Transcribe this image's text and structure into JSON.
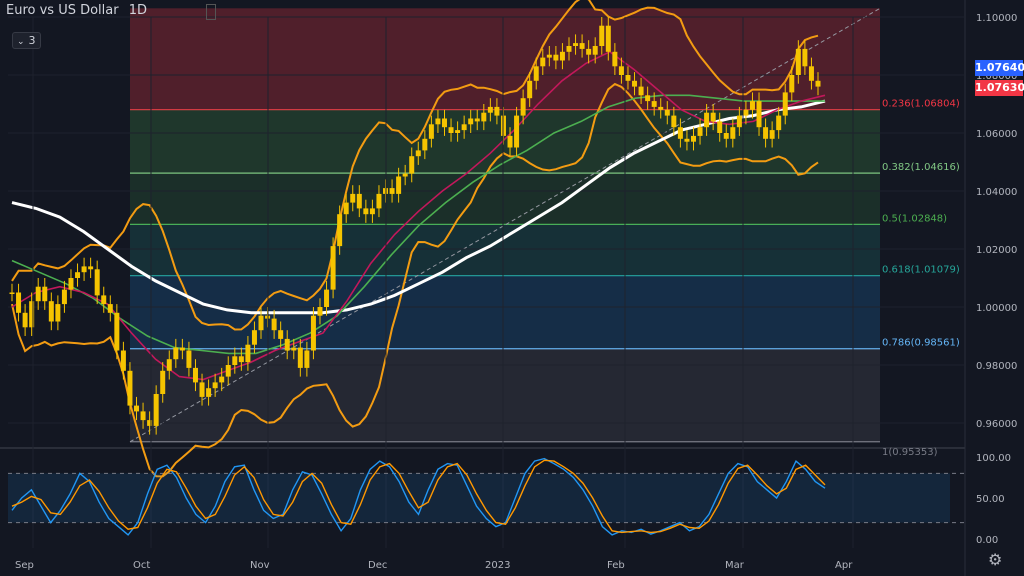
{
  "header": {
    "symbol": "Euro vs US Dollar",
    "interval": "1D",
    "indicator_count": "3"
  },
  "price_tags": {
    "blue": "1.07640",
    "red": "1.07630"
  },
  "colors": {
    "candle": "#f5c400",
    "bb": "#f39c12",
    "ma_white": "#ffffff",
    "ma_green": "#4caf50",
    "ma_pink": "#c2185b",
    "stoch_k": "#2196f3",
    "stoch_d": "#ff9800",
    "tag_blue": "#2962ff",
    "tag_red": "#f23645"
  },
  "chart_data": [
    {
      "type": "candlestick",
      "title": "Euro vs US Dollar",
      "interval": "1D",
      "x_ticks": [
        "Sep",
        "Oct",
        "Nov",
        "Dec",
        "2023",
        "Feb",
        "Mar",
        "Apr"
      ],
      "y_ticks": [
        "1.10000",
        "1.08000",
        "1.06000",
        "1.04000",
        "1.02000",
        "1.00000",
        "0.98000",
        "0.96000"
      ],
      "ylim": [
        0.951,
        1.105
      ],
      "fib_levels": [
        {
          "label": "0.236(1.06804)",
          "value": 1.06804,
          "color": "#f23645"
        },
        {
          "label": "0.382(1.04616)",
          "value": 1.04616,
          "color": "#81c784"
        },
        {
          "label": "0.5(1.02848)",
          "value": 1.02848,
          "color": "#4caf50"
        },
        {
          "label": "0.618(1.01079)",
          "value": 1.01079,
          "color": "#26a69a"
        },
        {
          "label": "0.786(0.98561)",
          "value": 0.98561,
          "color": "#64b5f6"
        },
        {
          "label": "1(0.95353)",
          "value": 0.95353,
          "color": "#787b86"
        }
      ],
      "close": [
        1.005,
        0.998,
        0.993,
        1.002,
        1.007,
        1.002,
        0.995,
        1.001,
        1.006,
        1.01,
        1.012,
        1.014,
        1.013,
        1.004,
        1.001,
        0.998,
        0.985,
        0.978,
        0.966,
        0.964,
        0.961,
        0.959,
        0.97,
        0.978,
        0.982,
        0.986,
        0.985,
        0.979,
        0.974,
        0.969,
        0.972,
        0.974,
        0.976,
        0.98,
        0.983,
        0.981,
        0.987,
        0.992,
        0.997,
        0.996,
        0.992,
        0.989,
        0.985,
        0.986,
        0.979,
        0.985,
        0.997,
        1.0,
        1.006,
        1.021,
        1.032,
        1.036,
        1.039,
        1.034,
        1.032,
        1.034,
        1.039,
        1.041,
        1.039,
        1.045,
        1.046,
        1.052,
        1.054,
        1.058,
        1.063,
        1.065,
        1.062,
        1.06,
        1.061,
        1.063,
        1.065,
        1.064,
        1.067,
        1.069,
        1.066,
        1.059,
        1.055,
        1.066,
        1.072,
        1.078,
        1.083,
        1.086,
        1.087,
        1.085,
        1.088,
        1.09,
        1.091,
        1.089,
        1.087,
        1.09,
        1.097,
        1.088,
        1.083,
        1.08,
        1.078,
        1.076,
        1.073,
        1.071,
        1.069,
        1.068,
        1.066,
        1.062,
        1.058,
        1.057,
        1.059,
        1.062,
        1.067,
        1.064,
        1.06,
        1.058,
        1.062,
        1.066,
        1.068,
        1.071,
        1.062,
        1.058,
        1.061,
        1.066,
        1.074,
        1.08,
        1.089,
        1.083,
        1.078,
        1.076
      ],
      "series": [
        {
          "name": "",
          "color": "#ffffff",
          "values": [
            1.036,
            1.034,
            1.031,
            1.026,
            1.02,
            1.014,
            1.009,
            1.005,
            1.001,
            0.999,
            0.998,
            0.998,
            0.998,
            0.998,
            0.999,
            1.001,
            1.004,
            1.008,
            1.012,
            1.017,
            1.021,
            1.026,
            1.031,
            1.036,
            1.042,
            1.048,
            1.053,
            1.057,
            1.061,
            1.063,
            1.065,
            1.066,
            1.068,
            1.069,
            1.071
          ]
        },
        {
          "name": "",
          "color": "#4caf50",
          "values": [
            1.016,
            1.012,
            1.008,
            1.003,
            0.996,
            0.99,
            0.986,
            0.985,
            0.984,
            0.984,
            0.987,
            0.991,
            0.997,
            1.007,
            1.018,
            1.028,
            1.036,
            1.043,
            1.049,
            1.054,
            1.06,
            1.064,
            1.069,
            1.072,
            1.073,
            1.073,
            1.072,
            1.071,
            1.071,
            1.071,
            1.071
          ]
        },
        {
          "name": "",
          "color": "#c2185b",
          "values": [
            1.0,
            1.005,
            1.007,
            1.005,
            1.001,
            0.991,
            0.982,
            0.976,
            0.975,
            0.978,
            0.981,
            0.985,
            0.988,
            0.991,
            1.002,
            1.015,
            1.025,
            1.033,
            1.04,
            1.046,
            1.053,
            1.061,
            1.07,
            1.078,
            1.084,
            1.088,
            1.082,
            1.075,
            1.068,
            1.064,
            1.063,
            1.064,
            1.068,
            1.071,
            1.073
          ]
        }
      ]
    },
    {
      "type": "line",
      "title": "",
      "y_ticks": [
        "100.00",
        "50.00",
        "0.00"
      ],
      "ylim": [
        0,
        100
      ],
      "ref_lines": [
        80,
        20
      ],
      "series": [
        {
          "name": "",
          "color": "#2196f3",
          "values": [
            35,
            50,
            60,
            40,
            20,
            35,
            55,
            80,
            70,
            45,
            25,
            15,
            5,
            20,
            55,
            85,
            90,
            75,
            50,
            30,
            20,
            40,
            70,
            88,
            90,
            60,
            35,
            25,
            30,
            60,
            82,
            78,
            55,
            30,
            10,
            25,
            60,
            85,
            95,
            88,
            70,
            45,
            30,
            60,
            85,
            92,
            90,
            65,
            40,
            25,
            15,
            20,
            50,
            80,
            95,
            98,
            92,
            85,
            75,
            60,
            40,
            15,
            5,
            10,
            8,
            12,
            6,
            10,
            15,
            20,
            10,
            15,
            30,
            55,
            80,
            92,
            88,
            70,
            60,
            50,
            70,
            95,
            85,
            70,
            62
          ]
        },
        {
          "name": "",
          "color": "#ff9800",
          "values": [
            40,
            45,
            52,
            48,
            32,
            30,
            45,
            65,
            72,
            58,
            38,
            22,
            12,
            14,
            38,
            68,
            85,
            82,
            62,
            40,
            25,
            30,
            52,
            78,
            88,
            75,
            48,
            30,
            28,
            45,
            70,
            80,
            68,
            42,
            20,
            18,
            42,
            72,
            88,
            92,
            80,
            58,
            38,
            45,
            72,
            88,
            92,
            78,
            55,
            35,
            20,
            18,
            38,
            65,
            88,
            96,
            95,
            88,
            80,
            68,
            50,
            28,
            10,
            8,
            9,
            10,
            8,
            9,
            13,
            18,
            14,
            13,
            22,
            42,
            68,
            86,
            90,
            78,
            65,
            55,
            62,
            85,
            90,
            78,
            66
          ]
        }
      ]
    }
  ]
}
